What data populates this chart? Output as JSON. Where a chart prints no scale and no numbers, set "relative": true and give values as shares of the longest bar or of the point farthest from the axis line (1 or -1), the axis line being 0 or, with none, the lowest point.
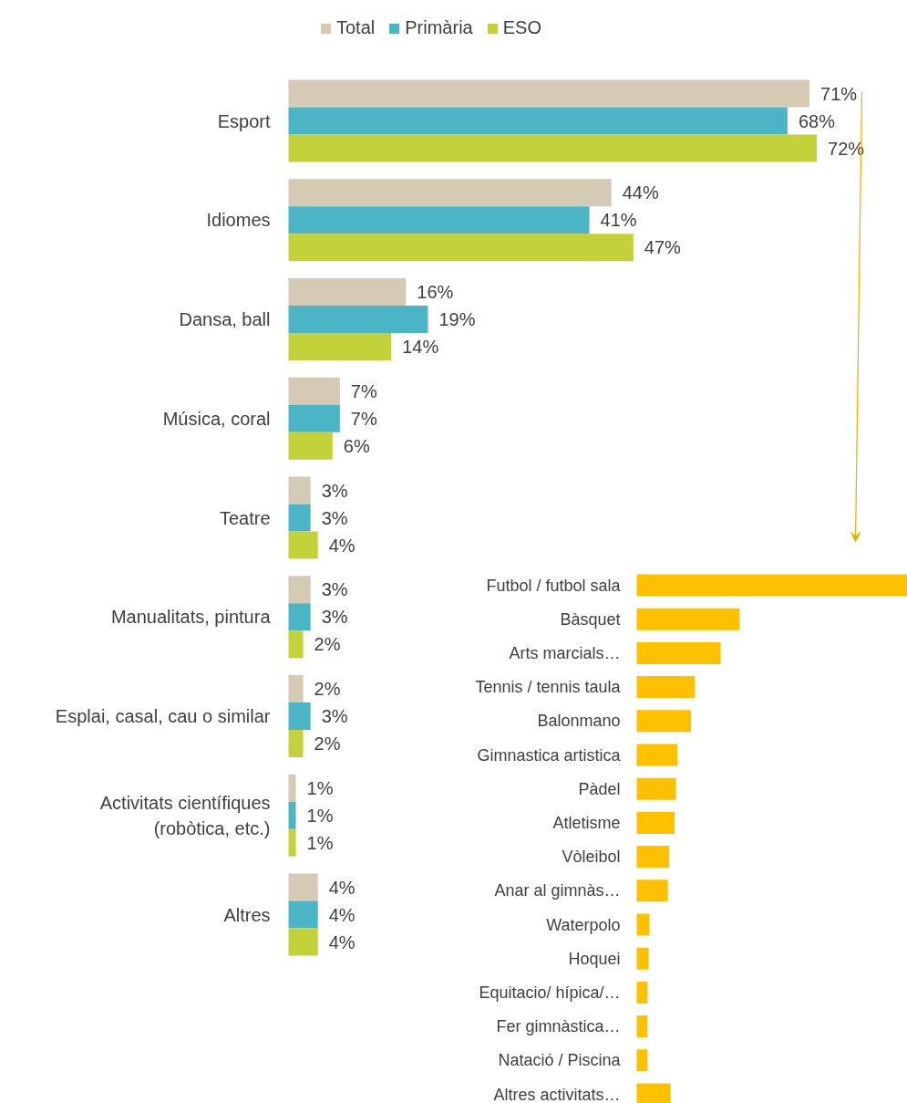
{
  "chart_data": [
    {
      "type": "bar",
      "orientation": "horizontal",
      "legend": "top",
      "categories": [
        "Esport",
        "Idiomes",
        "Dansa, ball",
        "Música, coral",
        "Teatre",
        "Manualitats, pintura",
        "Esplai, casal, cau o similar",
        "Activitats científiques\n(robòtica, etc.)",
        "Altres"
      ],
      "series": [
        {
          "name": "Total",
          "color": "#d5cbb5",
          "values": [
            71,
            44,
            16,
            7,
            3,
            3,
            2,
            1,
            4
          ],
          "value_labels": [
            "71%",
            "44%",
            "16%",
            "7%",
            "3%",
            "3%",
            "2%",
            "1%",
            "4%"
          ]
        },
        {
          "name": "Primària",
          "color": "#4bb5c6",
          "values": [
            68,
            41,
            19,
            7,
            3,
            3,
            3,
            1,
            4
          ],
          "value_labels": [
            "68%",
            "41%",
            "19%",
            "7%",
            "3%",
            "3%",
            "3%",
            "1%",
            "4%"
          ]
        },
        {
          "name": "ESO",
          "color": "#c3d23a",
          "values": [
            72,
            47,
            14,
            6,
            4,
            2,
            2,
            1,
            4
          ],
          "value_labels": [
            "72%",
            "47%",
            "14%",
            "6%",
            "4%",
            "2%",
            "2%",
            "1%",
            "4%"
          ]
        }
      ]
    },
    {
      "type": "bar",
      "orientation": "horizontal",
      "relative": true,
      "color": "#ffc000",
      "categories": [
        "Futbol / futbol sala",
        "Bàsquet",
        "Arts marcials…",
        "Tennis / tennis taula",
        "Balonmano",
        "Gimnastica artistica",
        "Pàdel",
        "Atletisme",
        "Vòleibol",
        "Anar al gimnàs…",
        "Waterpolo",
        "Hoquei",
        "Equitacio/ hípica/…",
        "Fer gimnàstica…",
        "Natació / Piscina",
        "Altres activitats…"
      ],
      "values": [
        1,
        0.38,
        0.31,
        0.215,
        0.2,
        0.15,
        0.145,
        0.14,
        0.12,
        0.115,
        0.047,
        0.044,
        0.04,
        0.04,
        0.04,
        0.125
      ]
    }
  ]
}
